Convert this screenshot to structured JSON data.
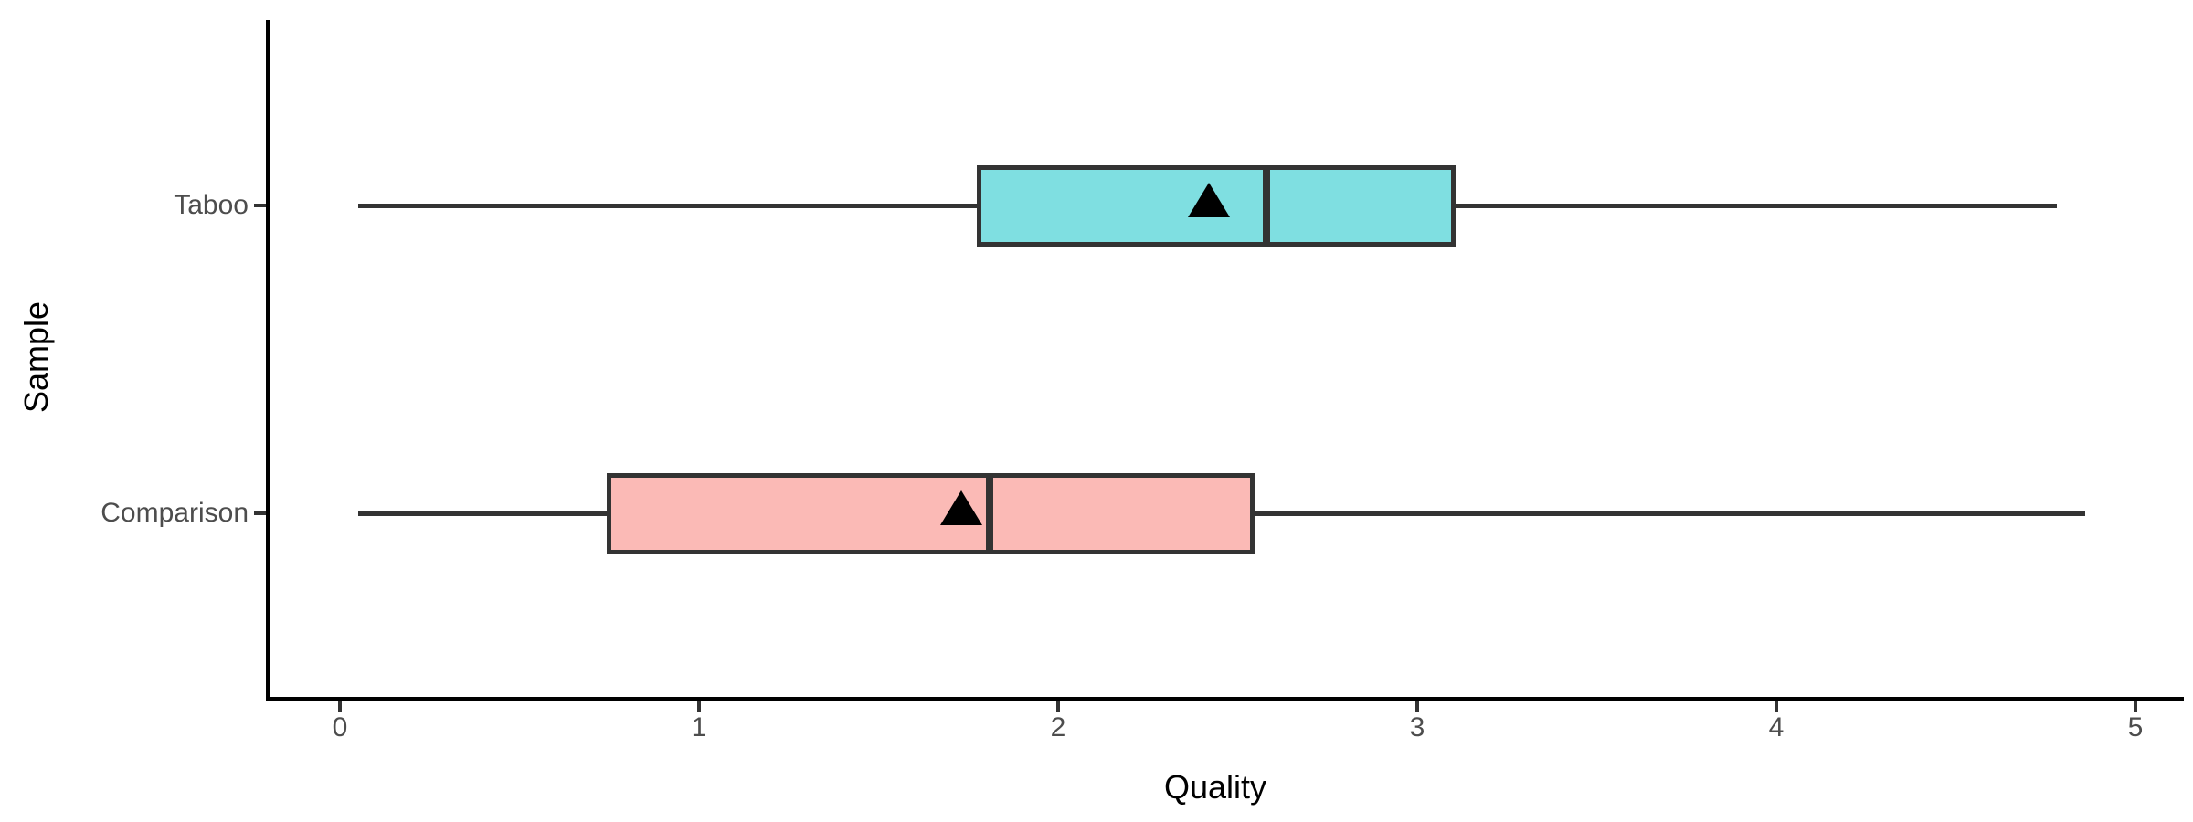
{
  "figure": {
    "background": "#ffffff"
  },
  "chart_data": {
    "type": "boxplot",
    "orientation": "horizontal",
    "title": "",
    "xlabel": "Quality",
    "ylabel": "Sample",
    "x_ticks": [
      "0",
      "1",
      "2",
      "3",
      "4",
      "5"
    ],
    "x_tick_values": [
      0,
      1,
      2,
      3,
      4,
      5
    ],
    "xlim": [
      -0.2,
      5.15
    ],
    "grid": "off",
    "legend": "none",
    "categories": [
      "Taboo",
      "Comparison"
    ],
    "series": [
      {
        "name": "Taboo",
        "min": 0.05,
        "q1": 1.78,
        "median": 2.58,
        "q3": 3.1,
        "max": 4.78,
        "mean": 2.42,
        "fill": "#00BFC4",
        "fill_alpha": 0.5
      },
      {
        "name": "Comparison",
        "min": 0.05,
        "q1": 0.75,
        "median": 1.81,
        "q3": 2.54,
        "max": 4.86,
        "mean": 1.73,
        "fill": "#F8766D",
        "fill_alpha": 0.5
      }
    ],
    "mean_marker": "filled-triangle-up",
    "colors": {
      "box_border": "#333333",
      "whisker": "#333333",
      "median": "#333333",
      "mean_marker": "#000000",
      "axis": "#000000",
      "tick_text": "#4d4d4d",
      "axis_title": "#000000"
    }
  }
}
